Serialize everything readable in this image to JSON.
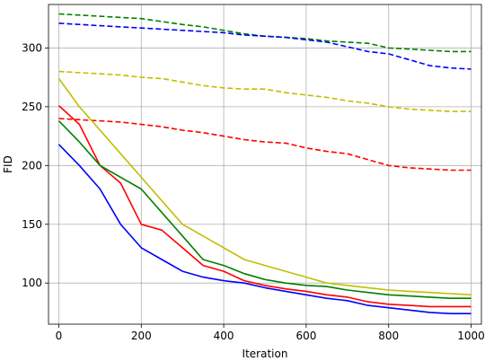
{
  "chart_data": {
    "type": "line",
    "title": "",
    "xlabel": "Iteration",
    "ylabel": "FID",
    "xlim": [
      -25,
      1025
    ],
    "ylim": [
      65,
      337
    ],
    "xticks": [
      0,
      200,
      400,
      600,
      800,
      1000
    ],
    "yticks": [
      100,
      150,
      200,
      250,
      300
    ],
    "xtick_labels": [
      "0",
      "200",
      "400",
      "600",
      "800",
      "1000"
    ],
    "ytick_labels": [
      "100",
      "150",
      "200",
      "250",
      "300"
    ],
    "grid": true,
    "legend": "none",
    "series": [
      {
        "color": "#008000",
        "style": "dashed",
        "x": [
          0,
          100,
          200,
          300,
          350,
          400,
          450,
          500,
          550,
          600,
          650,
          700,
          750,
          800,
          850,
          900,
          950,
          1000
        ],
        "y": [
          329,
          327,
          325,
          320,
          318,
          315,
          312,
          310,
          309,
          308,
          306,
          305,
          304,
          300,
          299,
          298,
          297,
          297
        ]
      },
      {
        "color": "#0000ff",
        "style": "dashed",
        "x": [
          0,
          100,
          200,
          300,
          350,
          400,
          450,
          500,
          550,
          600,
          650,
          700,
          750,
          800,
          850,
          900,
          950,
          1000
        ],
        "y": [
          321,
          319,
          317,
          315,
          314,
          313,
          311,
          310,
          309,
          307,
          305,
          301,
          297,
          295,
          290,
          285,
          283,
          282
        ]
      },
      {
        "color": "#bfbf00",
        "style": "dashed",
        "x": [
          0,
          100,
          150,
          200,
          250,
          300,
          350,
          400,
          450,
          500,
          550,
          600,
          650,
          700,
          750,
          800,
          850,
          900,
          950,
          1000
        ],
        "y": [
          280,
          278,
          277,
          275,
          274,
          271,
          268,
          266,
          265,
          265,
          262,
          260,
          258,
          255,
          253,
          250,
          248,
          247,
          246,
          246
        ]
      },
      {
        "color": "#ff0000",
        "style": "dashed",
        "x": [
          0,
          100,
          150,
          200,
          250,
          300,
          350,
          400,
          450,
          500,
          550,
          600,
          650,
          700,
          750,
          800,
          850,
          900,
          950,
          1000
        ],
        "y": [
          240,
          238,
          237,
          235,
          233,
          230,
          228,
          225,
          222,
          220,
          219,
          215,
          212,
          210,
          205,
          200,
          198,
          197,
          196,
          196
        ]
      },
      {
        "color": "#bfbf00",
        "style": "solid",
        "x": [
          0,
          50,
          100,
          150,
          200,
          250,
          300,
          350,
          400,
          450,
          500,
          550,
          600,
          650,
          700,
          750,
          800,
          850,
          900,
          950,
          1000
        ],
        "y": [
          274,
          250,
          230,
          210,
          190,
          170,
          150,
          140,
          130,
          120,
          115,
          110,
          105,
          100,
          98,
          96,
          94,
          93,
          92,
          91,
          90
        ]
      },
      {
        "color": "#ff0000",
        "style": "solid",
        "x": [
          0,
          50,
          100,
          150,
          200,
          250,
          300,
          350,
          400,
          450,
          500,
          550,
          600,
          650,
          700,
          750,
          800,
          850,
          900,
          950,
          1000
        ],
        "y": [
          251,
          235,
          200,
          185,
          150,
          145,
          130,
          115,
          110,
          102,
          98,
          95,
          93,
          90,
          88,
          84,
          82,
          81,
          80,
          80,
          80
        ]
      },
      {
        "color": "#008000",
        "style": "solid",
        "x": [
          0,
          50,
          100,
          150,
          200,
          250,
          300,
          350,
          400,
          450,
          500,
          550,
          600,
          650,
          700,
          750,
          800,
          850,
          900,
          950,
          1000
        ],
        "y": [
          238,
          220,
          200,
          190,
          180,
          160,
          140,
          120,
          115,
          108,
          103,
          100,
          98,
          97,
          94,
          92,
          90,
          89,
          88,
          87,
          87
        ]
      },
      {
        "color": "#0000ff",
        "style": "solid",
        "x": [
          0,
          50,
          100,
          150,
          200,
          250,
          300,
          350,
          400,
          450,
          500,
          550,
          600,
          650,
          700,
          750,
          800,
          850,
          900,
          950,
          1000
        ],
        "y": [
          218,
          200,
          180,
          150,
          130,
          120,
          110,
          105,
          102,
          100,
          96,
          93,
          90,
          87,
          85,
          81,
          79,
          77,
          75,
          74,
          74
        ]
      }
    ]
  }
}
